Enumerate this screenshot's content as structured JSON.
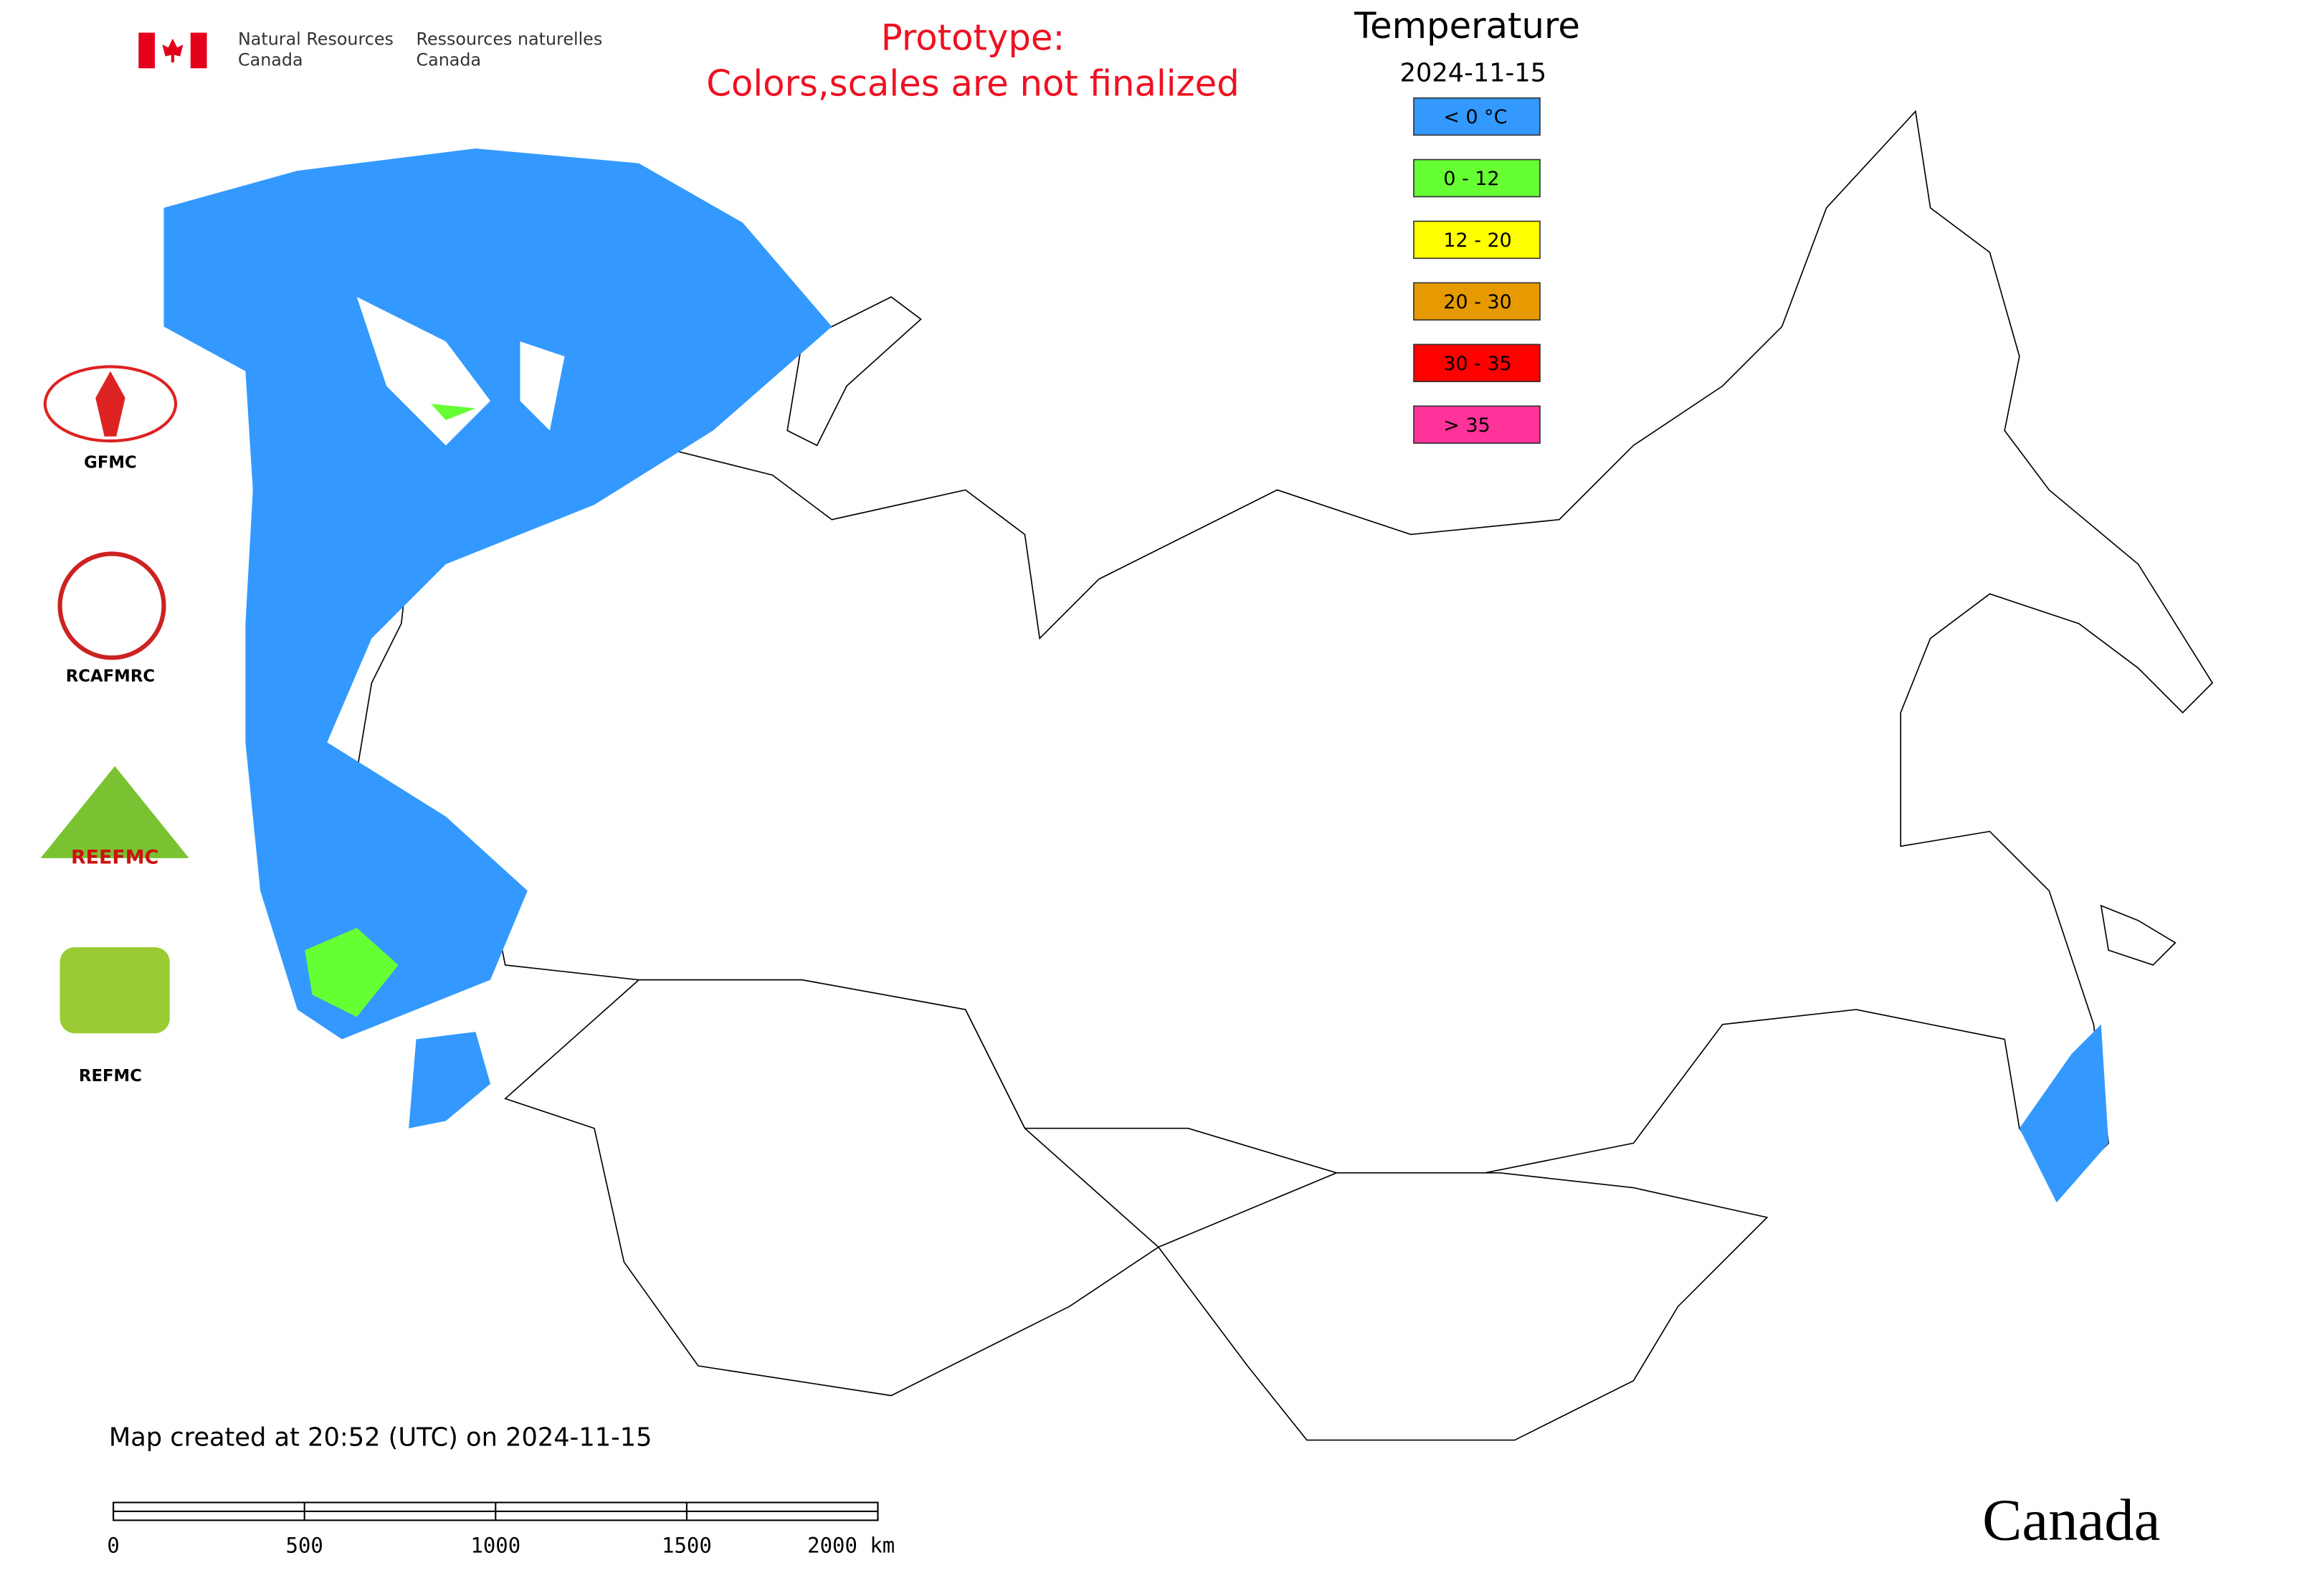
{
  "header": {
    "department_en": [
      "Natural Resources",
      "Canada"
    ],
    "department_fr": [
      "Ressources naturelles",
      "Canada"
    ],
    "notice": [
      "Prototype:",
      "Colors,scales are not finalized"
    ]
  },
  "legend": {
    "title": "Temperature",
    "date": "2024-11-15",
    "items": [
      {
        "label": "< 0 °C",
        "color": "#3399ff"
      },
      {
        "label": "0 - 12",
        "color": "#66ff33"
      },
      {
        "label": "12 - 20",
        "color": "#ffff00"
      },
      {
        "label": "20 - 30",
        "color": "#e69a00"
      },
      {
        "label": "30 - 35",
        "color": "#ff0000"
      },
      {
        "label": "> 35",
        "color": "#ff3399"
      }
    ]
  },
  "logos": {
    "side": [
      "GFMC",
      "RCAFMRC",
      "REFMC"
    ],
    "reefmc": "REEFMC"
  },
  "footer": {
    "created": "Map created at 20:52 (UTC) on 2024-11-15",
    "wordmark": "Canada"
  },
  "scale_bar": {
    "ticks": [
      0,
      500,
      1000,
      1500,
      {
        "value": 2000,
        "label": "2000 km"
      }
    ]
  }
}
